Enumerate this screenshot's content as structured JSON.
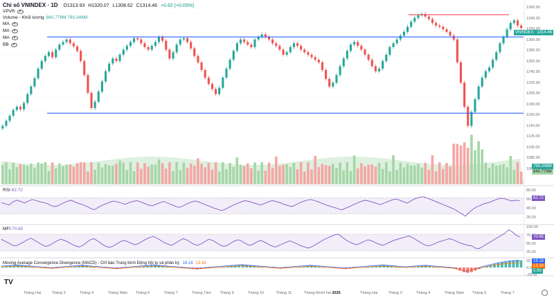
{
  "header": {
    "title": "Chỉ số VNINDEX · 1D",
    "ohlc": {
      "o": "O1313.93",
      "h": "H1320.07",
      "l": "L1308.62",
      "c": "C1314.46",
      "chg": "+0.62 (+0.05%)"
    },
    "vpvr": "VPVR",
    "volume_label": "Volume - Khối lượng",
    "volume_values": "840.779M 793.348M",
    "indicators": [
      "MA",
      "MA",
      "MA",
      "BB"
    ]
  },
  "price_tag": {
    "symbol": "VNINDEX",
    "value": "1314.46"
  },
  "vol_tags": [
    "793.348M",
    "840.779M"
  ],
  "price_axis": [
    "1360.00",
    "1340.00",
    "1320.00",
    "1300.00",
    "1280.00",
    "1260.00",
    "1240.00",
    "1220.00",
    "1200.00",
    "1180.00",
    "1160.00",
    "1140.00",
    "1125.00",
    "1105.00",
    "1085.00",
    "1065.00"
  ],
  "rsi": {
    "label": "RSI",
    "value": "62.72",
    "axis": [
      "80.00",
      "60.00",
      "40.00",
      "20.00"
    ]
  },
  "mfi": {
    "label": "MFI",
    "value": "70.65",
    "axis": [
      "100.00",
      "75.00",
      "50.00",
      "25.00"
    ]
  },
  "macd": {
    "label": "Moving Average Convergence Divergence (MACD) - Chỉ báo Trung bình Động hội tụ và phân kỳ",
    "p1": "19.16",
    "p2": "13.16",
    "axis": [
      "25.00",
      "0.00",
      "-25.00"
    ],
    "tags": [
      "19.16",
      "13.16",
      "5.99"
    ]
  },
  "time_axis": [
    "Tháng Hai",
    "Tháng 3",
    "Tháng 4",
    "Tháng Năm",
    "Tháng 6",
    "Tháng 7",
    "Tháng Tám",
    "Tháng 9",
    "Tháng 10",
    "Tháng 11",
    "Tháng Mười hai",
    "2025",
    "Tháng Hai",
    "Tháng 3",
    "Tháng 4",
    "Tháng Năm",
    "Tháng 6",
    "Tháng 7"
  ],
  "logo": "TV",
  "colors": {
    "up": "#26a69a",
    "down": "#ef5350",
    "hline": "#2962ff",
    "resist": "#f23645",
    "bb": "#c8e6c9",
    "rsi": "#7e57c2"
  },
  "chart_data": {
    "type": "candlestick",
    "title": "Chỉ số VNINDEX · 1D",
    "ylim": [
      1140,
      1345
    ],
    "horizontal_lines": [
      1300,
      1180
    ],
    "resistance_line": 1335,
    "closes": [
      1160,
      1168,
      1176,
      1185,
      1190,
      1186,
      1196,
      1210,
      1222,
      1235,
      1250,
      1262,
      1270,
      1276,
      1268,
      1280,
      1288,
      1292,
      1296,
      1290,
      1285,
      1278,
      1262,
      1240,
      1212,
      1188,
      1198,
      1214,
      1230,
      1246,
      1258,
      1266,
      1262,
      1272,
      1280,
      1286,
      1292,
      1298,
      1296,
      1290,
      1284,
      1280,
      1286,
      1292,
      1300,
      1294,
      1280,
      1266,
      1276,
      1288,
      1296,
      1298,
      1292,
      1282,
      1270,
      1260,
      1248,
      1236,
      1226,
      1218,
      1210,
      1220,
      1236,
      1250,
      1264,
      1278,
      1290,
      1296,
      1292,
      1288,
      1284,
      1296,
      1300,
      1304,
      1300,
      1296,
      1290,
      1286,
      1280,
      1272,
      1276,
      1284,
      1290,
      1286,
      1280,
      1276,
      1272,
      1268,
      1264,
      1260,
      1248,
      1234,
      1222,
      1228,
      1240,
      1254,
      1266,
      1278,
      1288,
      1292,
      1286,
      1280,
      1272,
      1264,
      1254,
      1246,
      1250,
      1262,
      1272,
      1284,
      1290,
      1296,
      1302,
      1308,
      1316,
      1324,
      1330,
      1334,
      1336,
      1332,
      1328,
      1322,
      1318,
      1316,
      1312,
      1308,
      1302,
      1296,
      1260,
      1228,
      1190,
      1160,
      1182,
      1202,
      1222,
      1236,
      1246,
      1252,
      1264,
      1276,
      1290,
      1300,
      1312,
      1322,
      1326,
      1318,
      1314
    ],
    "rsi": [
      58,
      55,
      52,
      60,
      64,
      61,
      57,
      62,
      66,
      63,
      60,
      58,
      55,
      50,
      48,
      52,
      57,
      61,
      64,
      60,
      56,
      53,
      49,
      44,
      40,
      46,
      51,
      55,
      59,
      62,
      60,
      57,
      54,
      58,
      61,
      63,
      60,
      56,
      52,
      50,
      54,
      58,
      61,
      57,
      53,
      49,
      46,
      50,
      55,
      59,
      62,
      60,
      56,
      52,
      48,
      44,
      41,
      38,
      42,
      47,
      52,
      56,
      60,
      63,
      61,
      58,
      55,
      52,
      56,
      60,
      63,
      61,
      58,
      54,
      51,
      48,
      52,
      57,
      61,
      64,
      66,
      63,
      60,
      56,
      52,
      49,
      46,
      43,
      40,
      44,
      48,
      53,
      57,
      61,
      64,
      62,
      59,
      56,
      53,
      57,
      61,
      65,
      67,
      64,
      60,
      57,
      63,
      68,
      71,
      73,
      70,
      66,
      62,
      58,
      54,
      50,
      46,
      42,
      36,
      30,
      24,
      34,
      42,
      48,
      52,
      56,
      58,
      62,
      66,
      69,
      68,
      65,
      62,
      64,
      63
    ],
    "mfi": [
      62,
      55,
      48,
      40,
      38,
      45,
      52,
      60,
      66,
      58,
      50,
      42,
      36,
      40,
      48,
      56,
      62,
      58,
      52,
      44,
      38,
      34,
      40,
      50,
      60,
      64,
      56,
      46,
      38,
      32,
      36,
      44,
      52,
      58,
      54,
      48,
      42,
      46,
      54,
      62,
      68,
      72,
      66,
      58,
      50,
      44,
      40,
      48,
      56,
      64,
      60,
      52,
      44,
      40,
      46,
      54,
      62,
      58,
      50,
      42,
      36,
      40,
      48,
      56,
      60,
      54,
      46,
      40,
      44,
      52,
      58,
      52,
      44,
      38,
      34,
      40,
      46,
      52,
      56,
      50,
      44,
      38,
      34,
      30,
      36,
      44,
      52,
      60,
      66,
      72,
      78,
      80,
      70,
      60,
      52,
      46,
      42,
      48,
      54,
      60,
      56,
      50,
      44,
      40,
      46,
      52,
      58,
      62,
      66,
      70,
      74,
      68,
      60,
      52,
      44,
      38,
      40,
      46,
      52,
      56,
      60,
      64,
      60,
      54,
      48,
      44,
      40,
      38,
      30,
      28,
      36,
      44,
      52,
      60,
      68,
      76,
      84,
      96,
      88,
      76,
      70
    ],
    "macd_hist": [
      2,
      3,
      4,
      5,
      6,
      5,
      4,
      3,
      2,
      1,
      0,
      -1,
      -2,
      -3,
      -2,
      -1,
      0,
      1,
      2,
      3,
      4,
      5,
      4,
      3,
      2,
      1,
      0,
      -1,
      -2,
      -3,
      -4,
      -3,
      -2,
      -1,
      0,
      1,
      2,
      3,
      4,
      5,
      6,
      5,
      4,
      3,
      2,
      1,
      0,
      -1,
      -2,
      -3,
      -4,
      -5,
      -4,
      -3,
      -2,
      -1,
      0,
      1,
      2,
      3,
      4,
      5,
      6,
      7,
      6,
      5,
      4,
      3,
      2,
      1,
      0,
      -1,
      -2,
      -3,
      -2,
      -1,
      0,
      1,
      2,
      3,
      4,
      5,
      4,
      3,
      2,
      1,
      0,
      -1,
      -2,
      -3,
      -4,
      -3,
      -2,
      -1,
      0,
      1,
      2,
      3,
      4,
      5,
      6,
      5,
      4,
      3,
      2,
      1,
      0,
      1,
      2,
      3,
      4,
      5,
      4,
      3,
      2,
      1,
      0,
      -1,
      -2,
      -4,
      -8,
      -12,
      -14,
      -12,
      -8,
      -4,
      0,
      3,
      6,
      9,
      12,
      14,
      16,
      18,
      19,
      20,
      19
    ]
  }
}
